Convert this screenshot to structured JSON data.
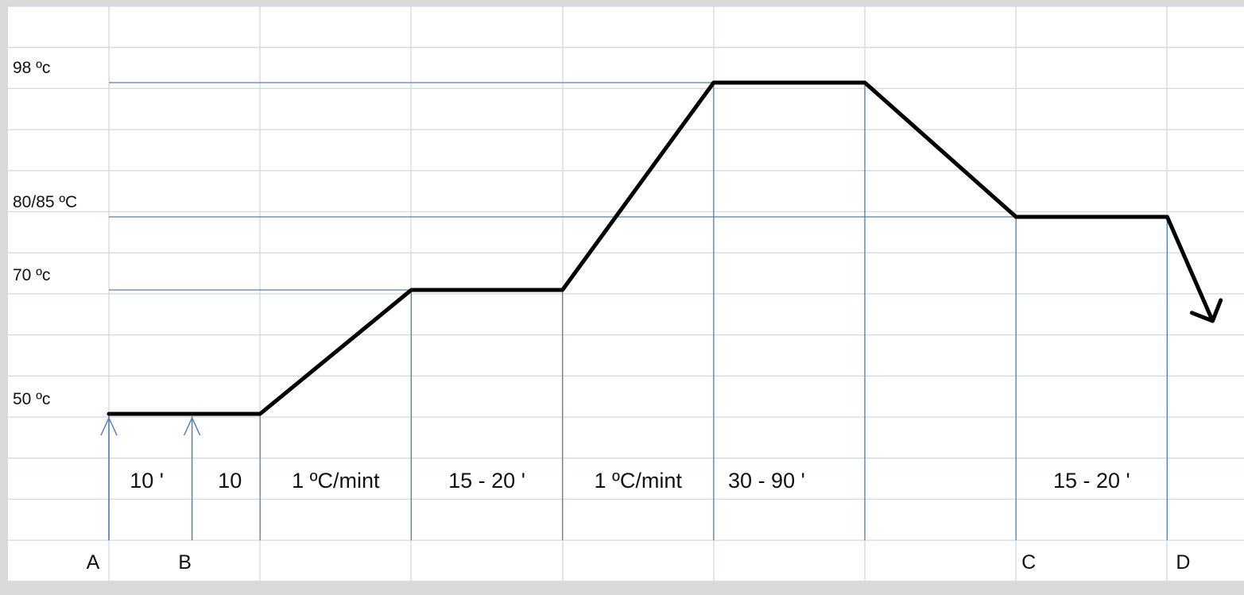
{
  "chart_data": {
    "type": "line",
    "title": "",
    "xlabel": "",
    "ylabel": "",
    "y_levels": [
      {
        "value": 50,
        "label": "50 ºc"
      },
      {
        "value": 70,
        "label": "70 ºc"
      },
      {
        "value": 80,
        "label": "80/85 ºC"
      },
      {
        "value": 98,
        "label": "98 ºc"
      }
    ],
    "grid": true,
    "series": [
      {
        "points": [
          {
            "x": 0,
            "y": 50
          },
          {
            "x": 2,
            "y": 50
          },
          {
            "x": 4,
            "y": 70
          },
          {
            "x": 6,
            "y": 70
          },
          {
            "x": 8,
            "y": 98
          },
          {
            "x": 10,
            "y": 98
          },
          {
            "x": 12,
            "y": 80
          },
          {
            "x": 14,
            "y": 80
          },
          {
            "x": 14.6,
            "y": 65
          }
        ],
        "ends_with_arrow": true
      }
    ],
    "segment_labels": [
      {
        "label": "10 '",
        "x": 0.5
      },
      {
        "label": "10",
        "x": 1.6
      },
      {
        "label": "1 ºC/mint",
        "x": 3.0
      },
      {
        "label": "15 - 20 '",
        "x": 5.0
      },
      {
        "label": "1 ºC/mint",
        "x": 7.0
      },
      {
        "label": "30 - 90 '",
        "x": 8.7
      },
      {
        "label": "15 - 20 '",
        "x": 13.0
      }
    ],
    "markers": [
      {
        "label": "A",
        "x": 0,
        "arrow": true
      },
      {
        "label": "B",
        "x": 1.1,
        "arrow": true
      },
      {
        "label": "C",
        "x": 12,
        "arrow": false
      },
      {
        "label": "D",
        "x": 14,
        "arrow": false
      }
    ],
    "colors": {
      "curve": "#000000",
      "guides": "#5b7fa6",
      "grid": "#d2d8e0"
    }
  }
}
